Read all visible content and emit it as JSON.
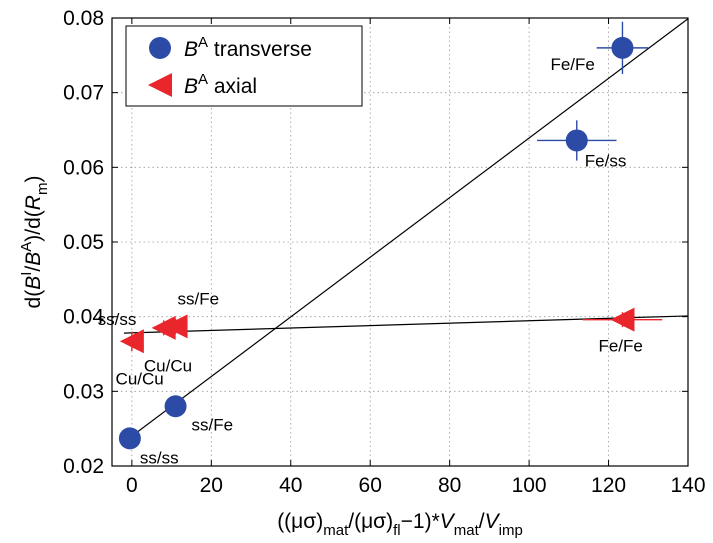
{
  "chart_data": {
    "type": "scatter",
    "xlim": [
      -5,
      140
    ],
    "ylim": [
      0.02,
      0.08
    ],
    "x_ticks": [
      0,
      20,
      40,
      60,
      80,
      100,
      120,
      140
    ],
    "y_ticks": [
      0.02,
      0.03,
      0.04,
      0.05,
      0.06,
      0.07,
      0.08
    ],
    "x_tick_labels": [
      "0",
      "20",
      "40",
      "60",
      "80",
      "100",
      "120",
      "140"
    ],
    "y_tick_labels": [
      "0.02",
      "0.03",
      "0.04",
      "0.05",
      "0.06",
      "0.07",
      "0.08"
    ],
    "grid": true,
    "legend_position": "top-left",
    "xlabel": {
      "parts": [
        "((μσ)",
        "mat",
        "/(μσ)",
        "fl",
        "−1)*",
        "V",
        "mat",
        "/",
        "V",
        "imp"
      ]
    },
    "ylabel": {
      "parts": [
        "d(",
        "B",
        "I",
        "/",
        "B",
        "A",
        ")/d(",
        "R",
        "m",
        ")"
      ]
    },
    "series": [
      {
        "legend_parts": [
          "B",
          "A",
          " transverse"
        ],
        "marker": "circle",
        "color": "#2b4ba6",
        "points": [
          {
            "x": 123.5,
            "y": 0.076,
            "xerr": 6.5,
            "yerr": 0.0035,
            "label": "Fe/Fe"
          },
          {
            "x": 112.0,
            "y": 0.0636,
            "xerr": 10.0,
            "yerr": 0.0027,
            "label": "Fe/ss"
          },
          {
            "x": 11.0,
            "y": 0.028,
            "xerr": 0,
            "yerr": 0,
            "label": "ss/Fe"
          },
          {
            "x": 11.0,
            "y": 0.028,
            "xerr": 0,
            "yerr": 0,
            "label": "Cu/Cu"
          },
          {
            "x": -0.5,
            "y": 0.0237,
            "xerr": 0,
            "yerr": 0,
            "label": "ss/ss"
          }
        ],
        "fit": {
          "x": [
            -2,
            140
          ],
          "y": [
            0.0232,
            0.0799
          ]
        }
      },
      {
        "legend_parts": [
          "B",
          "A",
          " axial"
        ],
        "marker": "triangle-left",
        "color": "#e8262b",
        "points": [
          {
            "x": 123.5,
            "y": 0.0396,
            "xerr": 10.0,
            "yerr": 0.001,
            "label": "Fe/Fe"
          },
          {
            "x": 11.0,
            "y": 0.0387,
            "xerr": 0,
            "yerr": 0.001,
            "label": "ss/Fe"
          },
          {
            "x": 8.0,
            "y": 0.0385,
            "xerr": 0,
            "yerr": 0.001,
            "label": "ss/ss"
          },
          {
            "x": 0.0,
            "y": 0.0367,
            "xerr": 0,
            "yerr": 0.0013,
            "label": "Cu/Cu"
          }
        ],
        "fit": {
          "x": [
            -2,
            140
          ],
          "y": [
            0.0378,
            0.0401
          ]
        }
      }
    ]
  }
}
